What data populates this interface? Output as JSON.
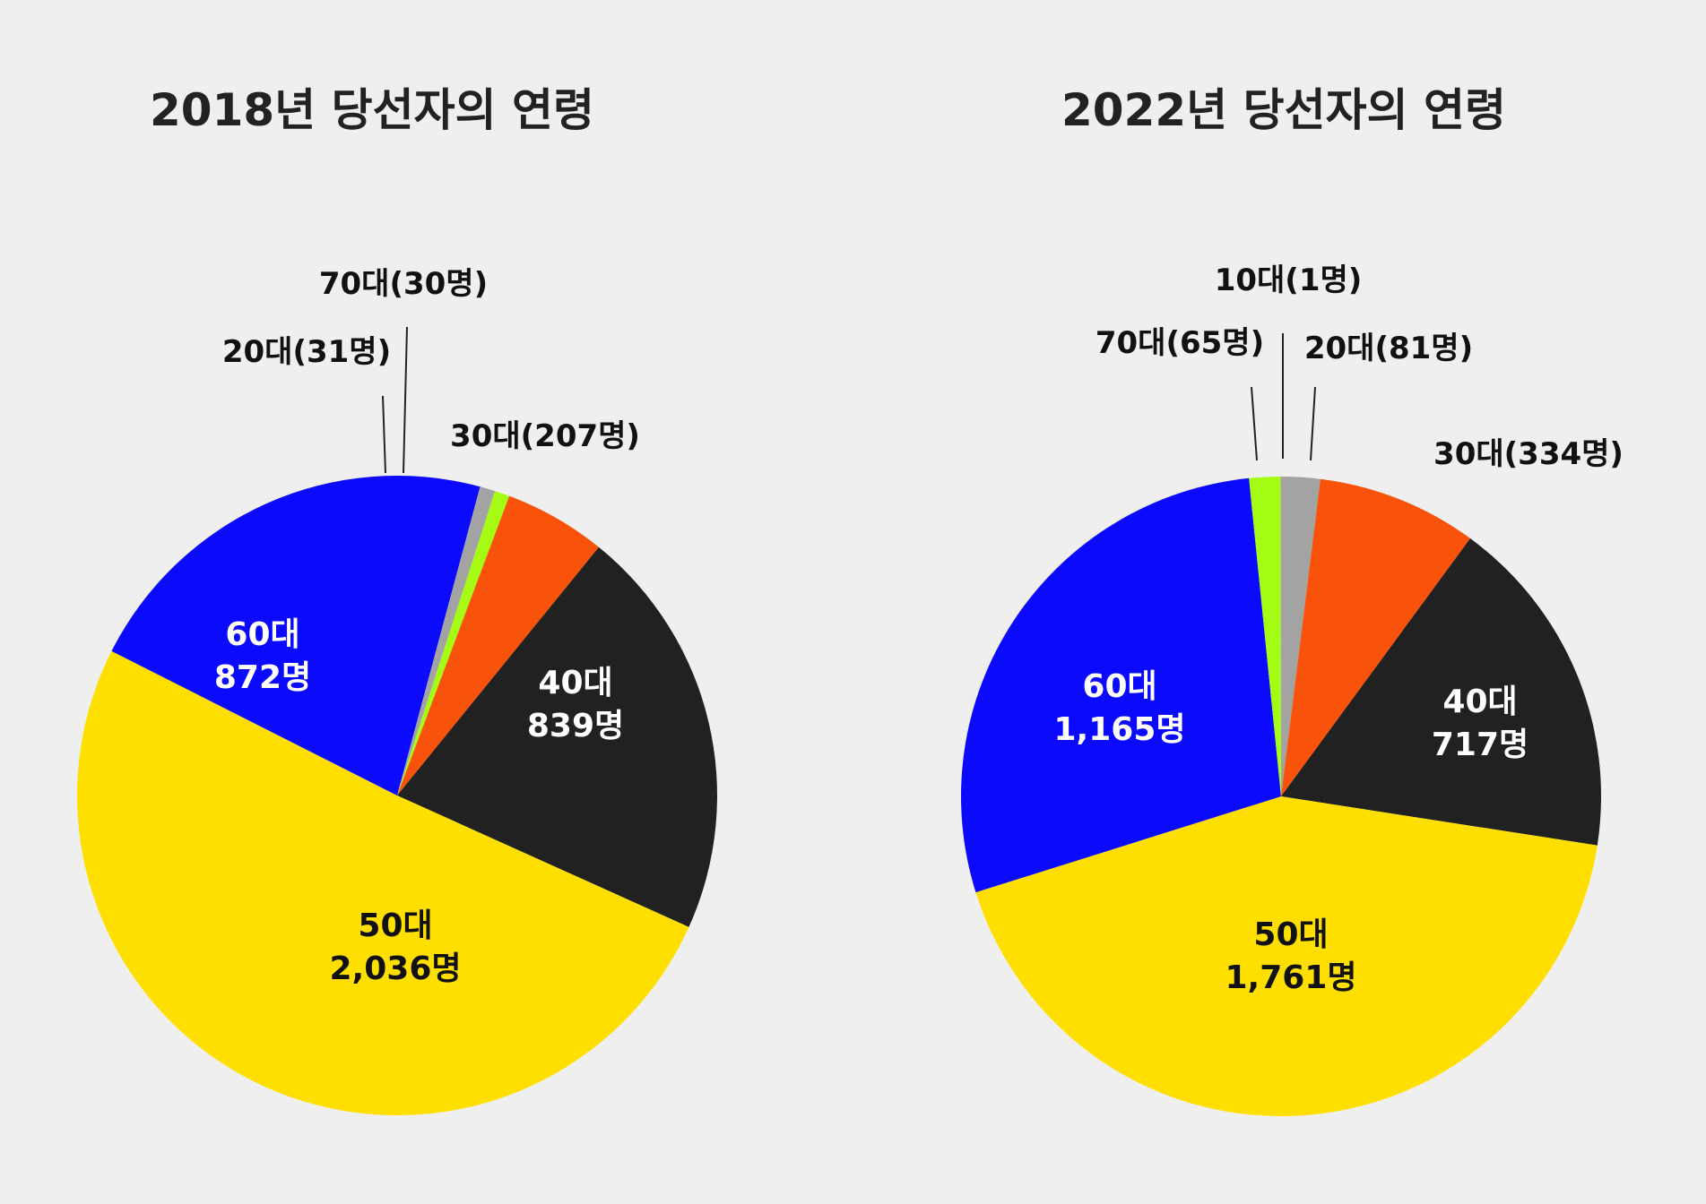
{
  "colors": {
    "background": "#efefef",
    "10대": "#b0b0b0",
    "20대": "#a3a3a3",
    "30대": "#f9520a",
    "40대": "#212121",
    "50대": "#ffdf00",
    "60대": "#0b0afc",
    "70대": "#a4fb14",
    "title_text": "#222222",
    "label_dark": "#111111",
    "label_light": "#ffffff"
  },
  "chart_data": [
    {
      "type": "pie",
      "title": "2018년 당선자의 연령",
      "unit": "명",
      "slices": [
        {
          "label": "30대",
          "value": 207,
          "display": "30대(207명)",
          "placement": "outside"
        },
        {
          "label": "40대",
          "value": 839,
          "display_lines": [
            "40대",
            "839명"
          ],
          "placement": "inside"
        },
        {
          "label": "50대",
          "value": 2036,
          "display_lines": [
            "50대",
            "2,036명"
          ],
          "placement": "inside"
        },
        {
          "label": "60대",
          "value": 872,
          "display_lines": [
            "60대",
            "872명"
          ],
          "placement": "inside"
        },
        {
          "label": "20대",
          "value": 31,
          "display": "20대(31명)",
          "placement": "outside"
        },
        {
          "label": "70대",
          "value": 30,
          "display": "70대(30명)",
          "placement": "outside"
        }
      ]
    },
    {
      "type": "pie",
      "title": "2022년 당선자의 연령",
      "unit": "명",
      "slices": [
        {
          "label": "20대",
          "value": 81,
          "display": "20대(81명)",
          "placement": "outside"
        },
        {
          "label": "30대",
          "value": 334,
          "display": "30대(334명)",
          "placement": "outside"
        },
        {
          "label": "40대",
          "value": 717,
          "display_lines": [
            "40대",
            "717명"
          ],
          "placement": "inside"
        },
        {
          "label": "50대",
          "value": 1761,
          "display_lines": [
            "50대",
            "1,761명"
          ],
          "placement": "inside"
        },
        {
          "label": "60대",
          "value": 1165,
          "display_lines": [
            "60대",
            "1,165명"
          ],
          "placement": "inside"
        },
        {
          "label": "70대",
          "value": 65,
          "display": "70대(65명)",
          "placement": "outside"
        },
        {
          "label": "10대",
          "value": 1,
          "display": "10대(1명)",
          "placement": "outside"
        }
      ]
    }
  ]
}
